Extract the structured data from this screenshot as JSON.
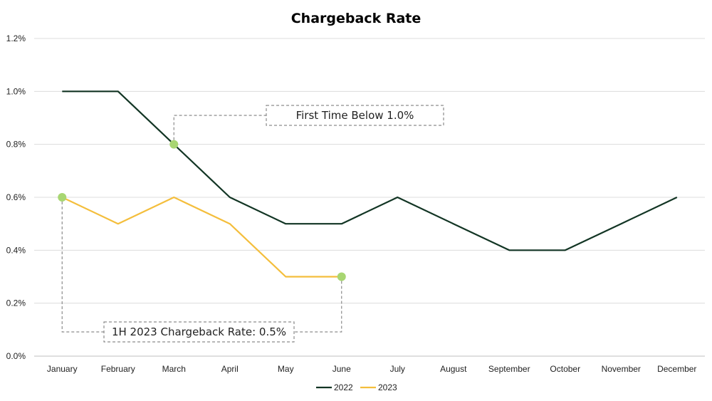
{
  "chart_data": {
    "type": "line",
    "title": "Chargeback Rate",
    "xlabel": "",
    "ylabel": "",
    "categories": [
      "January",
      "February",
      "March",
      "April",
      "May",
      "June",
      "July",
      "August",
      "September",
      "October",
      "November",
      "December"
    ],
    "ylim": [
      0,
      1.2
    ],
    "yticks": [
      0.0,
      0.2,
      0.4,
      0.6,
      0.8,
      1.0,
      1.2
    ],
    "ytick_labels": [
      "0.0%",
      "0.2%",
      "0.4%",
      "0.6%",
      "0.8%",
      "1.0%",
      "1.2%"
    ],
    "grid": true,
    "legend_position": "bottom-center",
    "series": [
      {
        "name": "2022",
        "color": "#123524",
        "values": [
          1.0,
          1.0,
          0.8,
          0.6,
          0.5,
          0.5,
          0.6,
          0.5,
          0.4,
          0.4,
          0.5,
          0.6
        ]
      },
      {
        "name": "2023",
        "color": "#F4BE3C",
        "values": [
          0.6,
          0.5,
          0.6,
          0.5,
          0.3,
          0.3,
          null,
          null,
          null,
          null,
          null,
          null
        ]
      }
    ],
    "highlight_color": "#A8D672",
    "annotations": [
      {
        "text": "First Time Below 1.0%",
        "point": {
          "series": "2022",
          "category": "March",
          "value": 0.8
        }
      },
      {
        "text": "1H 2023 Chargeback Rate: 0.5%",
        "points": [
          {
            "series": "2023",
            "category": "January",
            "value": 0.6
          },
          {
            "series": "2023",
            "category": "June",
            "value": 0.3
          }
        ]
      }
    ]
  }
}
